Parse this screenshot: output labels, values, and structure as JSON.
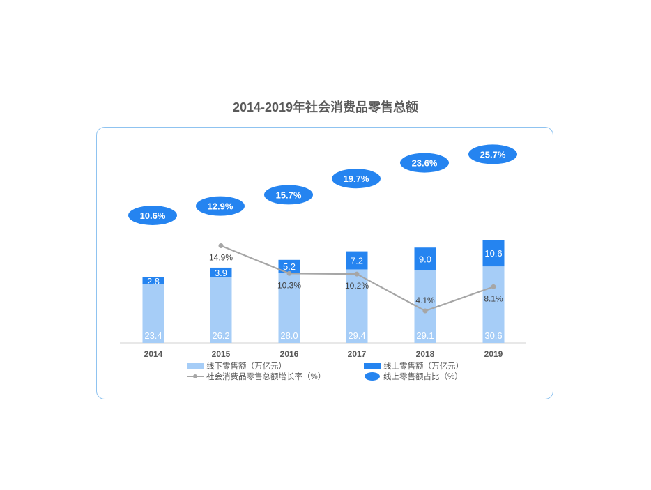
{
  "chart_data": {
    "type": "bar",
    "title": "2014-2019年社会消费品零售总额",
    "categories": [
      "2014",
      "2015",
      "2016",
      "2017",
      "2018",
      "2019"
    ],
    "series": [
      {
        "name": "线下零售额（万亿元）",
        "kind": "stacked-bar",
        "color": "#a6cdf7",
        "values": [
          23.4,
          26.2,
          28.0,
          29.4,
          29.1,
          30.6
        ]
      },
      {
        "name": "线上零售额（万亿元）",
        "kind": "stacked-bar",
        "color": "#2584f0",
        "values": [
          2.8,
          3.9,
          5.2,
          7.2,
          9.0,
          10.6
        ]
      },
      {
        "name": "社会消费品零售总额增长率（%）",
        "kind": "line",
        "color": "#a6a6a6",
        "values": [
          null,
          14.9,
          10.3,
          10.2,
          4.1,
          8.1
        ]
      },
      {
        "name": "线上零售额占比（%）",
        "kind": "ellipse-label",
        "color": "#2584f0",
        "values": [
          10.6,
          12.9,
          15.7,
          19.7,
          23.6,
          25.7
        ]
      }
    ],
    "growth_labels": [
      "",
      "14.9%",
      "10.3%",
      "10.2%",
      "4.1%",
      "8.1%"
    ],
    "share_labels": [
      "10.6%",
      "12.9%",
      "15.7%",
      "19.7%",
      "23.6%",
      "25.7%"
    ],
    "legend_placement": "bottom",
    "grid": false
  }
}
